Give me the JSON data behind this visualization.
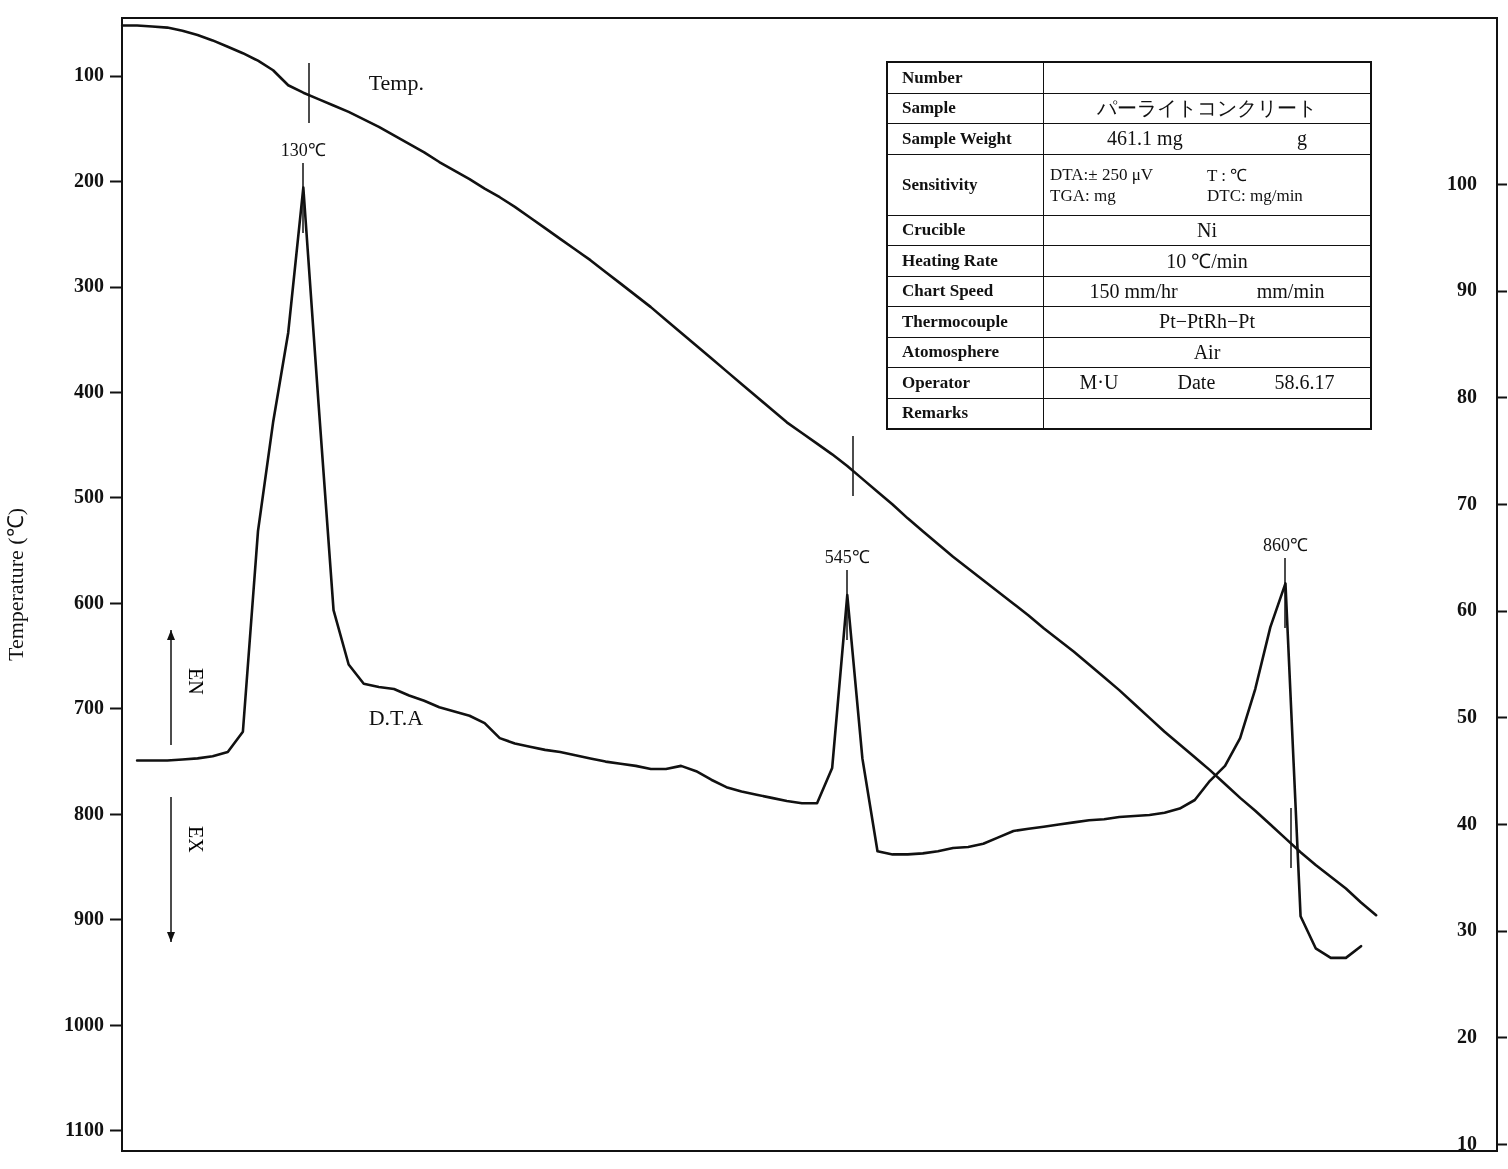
{
  "chart_data": {
    "type": "line",
    "ylabel": "Temperature (℃)",
    "categories": [
      null,
      null,
      null,
      null,
      null,
      null,
      null,
      null,
      null,
      null,
      null,
      null,
      null,
      null,
      null,
      null,
      null,
      null,
      null,
      null,
      null,
      null,
      null,
      null,
      null,
      null,
      null,
      null,
      null,
      null,
      null,
      null,
      null,
      null,
      null,
      null,
      null,
      null,
      null,
      null,
      null,
      null,
      null,
      null,
      null,
      null,
      null,
      null,
      null,
      null,
      null,
      null,
      null,
      null,
      null,
      null,
      null,
      null,
      null,
      null,
      null,
      null,
      null,
      null,
      null,
      null,
      null,
      null,
      null,
      null,
      null,
      null,
      null,
      null,
      null,
      null,
      null,
      null,
      null,
      null,
      null,
      null,
      null,
      null,
      null,
      null,
      null,
      null,
      null,
      null,
      null,
      null
    ],
    "ylim": [
      1119,
      45
    ],
    "yticks": [
      100,
      200,
      300,
      400,
      500,
      600,
      700,
      800,
      900,
      1000,
      1100
    ],
    "y2lim": [
      9.4,
      115.6
    ],
    "y2ticks": [
      10,
      20,
      30,
      40,
      50,
      60,
      70,
      80,
      90,
      100
    ],
    "series": [
      {
        "name": "Temp.",
        "color": "#111111",
        "axis": "y2",
        "values": [
          114.9,
          114.9,
          114.8,
          114.7,
          114.4,
          114.0,
          113.5,
          112.9,
          112.3,
          111.6,
          110.7,
          109.3,
          108.6,
          108.0,
          107.4,
          106.8,
          106.1,
          105.4,
          104.6,
          103.8,
          103.0,
          102.1,
          101.3,
          100.5,
          99.6,
          98.8,
          97.9,
          96.9,
          95.9,
          94.9,
          93.9,
          92.9,
          91.8,
          90.7,
          89.6,
          88.5,
          87.3,
          86.1,
          84.9,
          83.7,
          82.5,
          81.3,
          80.1,
          78.9,
          77.7,
          76.7,
          75.7,
          74.7,
          73.6,
          72.4,
          71.2,
          70.0,
          68.7,
          67.5,
          66.3,
          65.1,
          64.0,
          62.9,
          61.8,
          60.7,
          59.6,
          58.4,
          57.3,
          56.2,
          55.0,
          53.8,
          52.6,
          51.3,
          50.0,
          48.7,
          47.5,
          46.3,
          45.1,
          43.8,
          42.5,
          41.3,
          40.0,
          38.7,
          37.4,
          36.2,
          35.1,
          34.0,
          32.7,
          31.5,
          null,
          null,
          null,
          null,
          null,
          null,
          null,
          null
        ]
      },
      {
        "name": "D.T.A",
        "color": "#111111",
        "axis": "y2",
        "values": [
          null,
          46.0,
          46.0,
          46.0,
          46.1,
          46.2,
          46.4,
          46.8,
          48.7,
          67.5,
          77.7,
          86.1,
          99.7,
          79.6,
          60.1,
          55.0,
          53.2,
          52.9,
          52.7,
          52.1,
          51.6,
          51.0,
          50.6,
          50.2,
          49.5,
          48.1,
          47.6,
          47.3,
          47.0,
          46.8,
          46.5,
          46.2,
          45.9,
          45.7,
          45.5,
          45.2,
          45.2,
          45.5,
          45.0,
          44.2,
          43.5,
          43.1,
          42.8,
          42.5,
          42.2,
          42.0,
          42.0,
          45.3,
          61.5,
          46.2,
          37.5,
          37.2,
          37.2,
          37.3,
          37.5,
          37.8,
          37.9,
          38.2,
          38.8,
          39.4,
          39.6,
          39.8,
          40.0,
          40.2,
          40.4,
          40.5,
          40.7,
          40.8,
          40.9,
          41.1,
          41.5,
          42.3,
          44.1,
          45.5,
          48.1,
          52.7,
          58.5,
          62.6,
          31.4,
          28.4,
          27.5,
          27.5,
          28.6,
          null,
          null,
          null,
          null,
          null,
          null,
          null,
          null,
          null
        ]
      }
    ],
    "annotations": [
      "EN",
      "EX",
      "Number",
      "Sample",
      "パーライトコンクリート",
      "Sample Weight",
      "461.1 mg",
      "g",
      "Sensitivity",
      "DTA:± 250 μV",
      "T :   ℃",
      "TGA:   mg",
      "DTC:   mg/min",
      "Crucible",
      "Ni",
      "Heating Rate",
      "10 ℃/min",
      "Chart Speed",
      "150 mm/hr",
      "mm/min",
      "Thermocouple",
      "Pt−PtRh−Pt",
      "Atomosphere",
      "Air",
      "Operator",
      "M·U",
      "Date",
      "58.6.17",
      "Remarks",
      "130℃",
      "545℃",
      "860℃"
    ],
    "legend": false,
    "grid": false,
    "marker": "none",
    "line_style": "solid"
  }
}
